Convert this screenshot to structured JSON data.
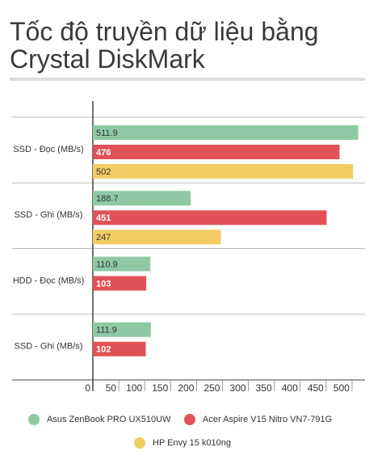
{
  "chart_data": {
    "type": "hbar",
    "title": [
      "Tốc độ truyền dữ liệu bằng",
      "Crystal DiskMark"
    ],
    "categories": [
      "SSD - Đọc (MB/s)",
      "SSD - Ghi (MB/s)",
      "HDD - Đọc (MB/s)",
      "SSD - Ghi (MB/s)"
    ],
    "series": [
      {
        "name": "Asus ZenBook PRO UX510UW",
        "color": "#8ec9a4",
        "values": [
          511.9,
          188.7,
          110.9,
          111.9
        ]
      },
      {
        "name": "Acer Aspire V15 Nitro VN7-791G",
        "color": "#e05257",
        "values": [
          476,
          451,
          103,
          102
        ]
      },
      {
        "name": "HP Envy 15 k010ng",
        "color": "#f2cc63",
        "values": [
          502,
          247,
          null,
          null
        ]
      }
    ],
    "xlim": [
      0,
      525
    ],
    "xticks": [
      0,
      50,
      100,
      150,
      200,
      250,
      300,
      350,
      400,
      450,
      500
    ]
  }
}
